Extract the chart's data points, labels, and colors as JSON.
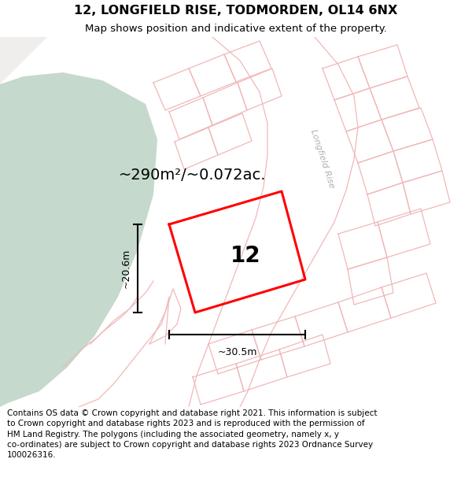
{
  "title": "12, LONGFIELD RISE, TODMORDEN, OL14 6NX",
  "subtitle": "Map shows position and indicative extent of the property.",
  "footer_line1": "Contains OS data © Crown copyright and database right 2021. This information is subject to Crown copyright and database rights 2023 and is reproduced with the permission of",
  "footer_line2": "HM Land Registry. The polygons (including the associated geometry, namely x, y co-ordinates) are subject to Crown copyright and database rights 2023 Ordnance Survey",
  "footer_line3": "100026316.",
  "area_label": "~290m²/~0.072ac.",
  "width_label": "~30.5m",
  "height_label": "~20.6m",
  "number_label": "12",
  "bg_color": "#ffffff",
  "map_bg": "#f7f2f2",
  "green_color": "#c5d9cc",
  "plot_color": "#ff0000",
  "road_color": "#f0b8b8",
  "block_fill": "#ede8e8",
  "road_label_color": "#b0b0b0",
  "title_fontsize": 11.5,
  "subtitle_fontsize": 9.5,
  "footer_fontsize": 7.5,
  "area_fontsize": 14,
  "number_fontsize": 20,
  "dim_fontsize": 9
}
